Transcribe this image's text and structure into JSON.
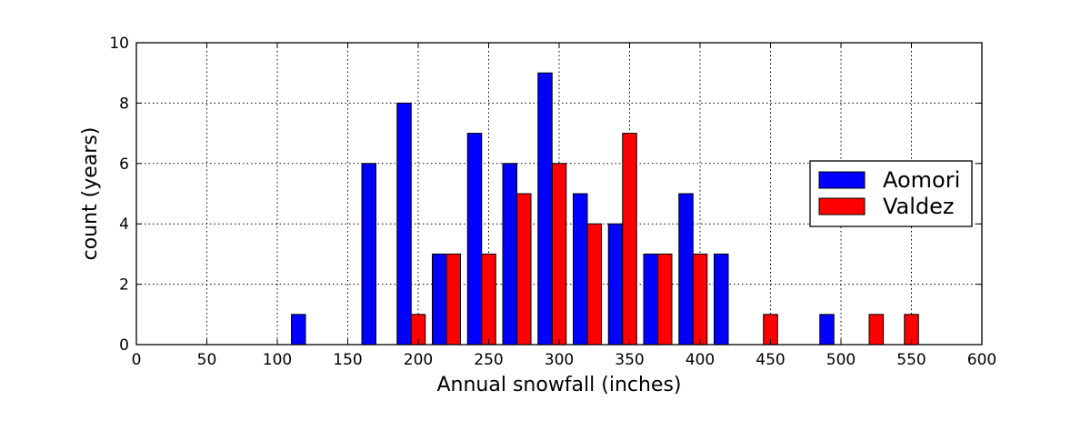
{
  "chart_data": {
    "type": "bar",
    "xlabel": "Annual snowfall (inches)",
    "ylabel": "count (years)",
    "xlim": [
      0,
      600
    ],
    "ylim": [
      0,
      10
    ],
    "xticks": [
      0,
      50,
      100,
      150,
      200,
      250,
      300,
      350,
      400,
      450,
      500,
      550,
      600
    ],
    "yticks": [
      0,
      2,
      4,
      6,
      8,
      10
    ],
    "grid": true,
    "legend_position": "center-right",
    "bin_centers": [
      20,
      45,
      70,
      95,
      120,
      145,
      170,
      195,
      220,
      245,
      270,
      295,
      320,
      345,
      370,
      395,
      420,
      445,
      470,
      495,
      520,
      545,
      570
    ],
    "series": [
      {
        "name": "Aomori",
        "color": "#0000ff",
        "values": [
          0,
          0,
          0,
          0,
          1,
          0,
          6,
          8,
          3,
          7,
          6,
          9,
          5,
          4,
          3,
          5,
          3,
          0,
          0,
          1,
          0,
          0,
          0
        ]
      },
      {
        "name": "Valdez",
        "color": "#ff0000",
        "values": [
          0,
          0,
          0,
          0,
          0,
          0,
          0,
          1,
          3,
          3,
          5,
          6,
          4,
          7,
          3,
          3,
          0,
          1,
          0,
          0,
          1,
          1,
          0
        ]
      }
    ]
  }
}
